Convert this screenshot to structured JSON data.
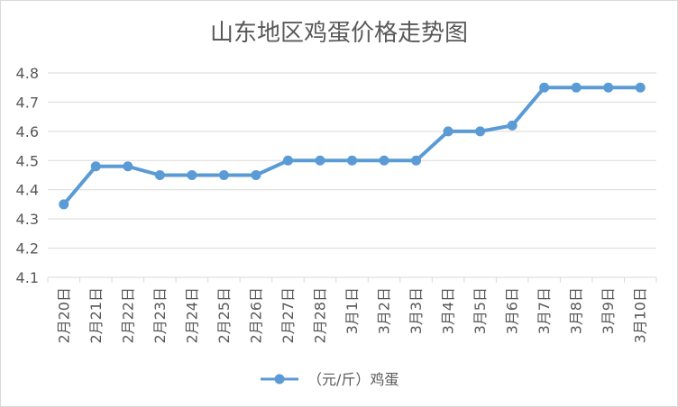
{
  "chart_data": {
    "type": "line",
    "title": "山东地区鸡蛋价格走势图",
    "xlabel": "",
    "ylabel": "",
    "ylim": [
      4.1,
      4.8
    ],
    "yticks": [
      "4.1",
      "4.2",
      "4.3",
      "4.4",
      "4.5",
      "4.6",
      "4.7",
      "4.8"
    ],
    "grid": true,
    "legend_position": "bottom",
    "categories": [
      "2月20日",
      "2月21日",
      "2月22日",
      "2月23日",
      "2月24日",
      "2月25日",
      "2月26日",
      "2月27日",
      "2月28日",
      "3月1日",
      "3月2日",
      "3月3日",
      "3月4日",
      "3月5日",
      "3月6日",
      "3月7日",
      "3月8日",
      "3月9日",
      "3月10日"
    ],
    "series": [
      {
        "name": "（元/斤）鸡蛋",
        "color": "#5b9bd5",
        "values": [
          4.35,
          4.48,
          4.48,
          4.45,
          4.45,
          4.45,
          4.45,
          4.5,
          4.5,
          4.5,
          4.5,
          4.5,
          4.6,
          4.6,
          4.62,
          4.75,
          4.75,
          4.75,
          4.75
        ]
      }
    ]
  }
}
